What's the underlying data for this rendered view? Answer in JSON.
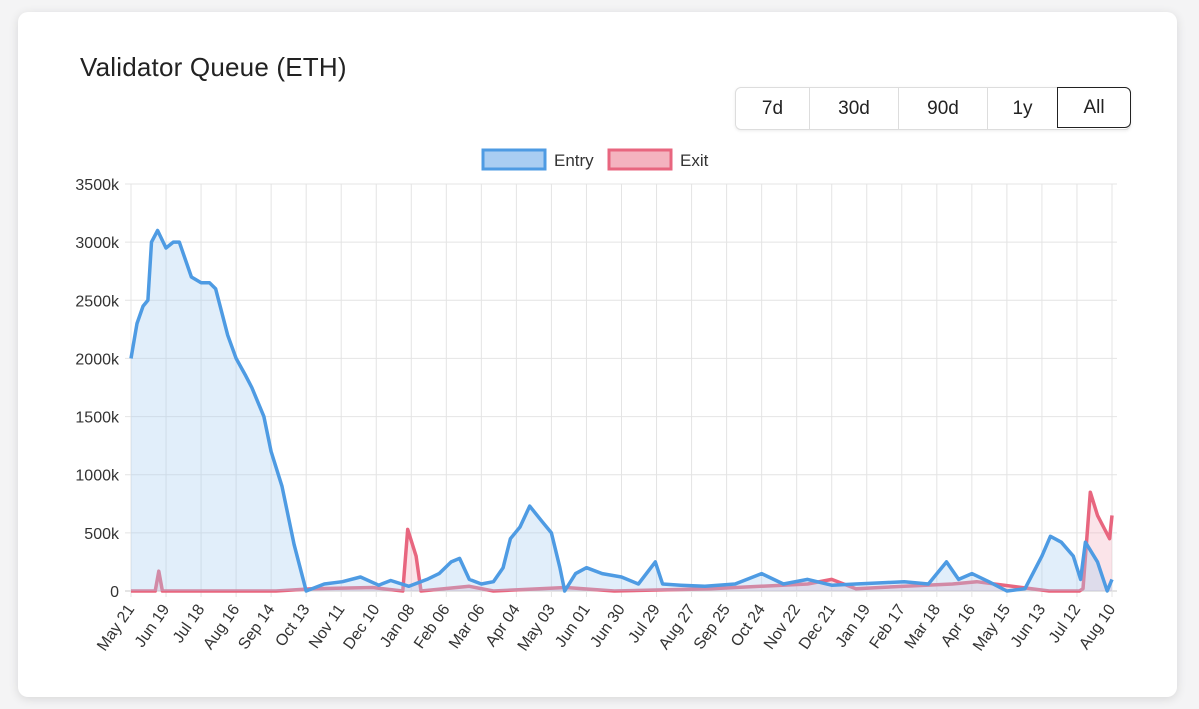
{
  "title": "Validator Queue (ETH)",
  "range_buttons": [
    {
      "label": "7d",
      "active": false
    },
    {
      "label": "30d",
      "active": false
    },
    {
      "label": "90d",
      "active": false
    },
    {
      "label": "1y",
      "active": false
    },
    {
      "label": "All",
      "active": true
    }
  ],
  "chart_data": {
    "type": "line",
    "title": "",
    "xlabel": "",
    "ylabel": "",
    "legend_position": "top",
    "grid": true,
    "ylim": [
      0,
      3500
    ],
    "y_ticks": [
      "0",
      "500k",
      "1000k",
      "1500k",
      "2000k",
      "2500k",
      "3000k",
      "3500k"
    ],
    "y_tick_values": [
      0,
      500,
      1000,
      1500,
      2000,
      2500,
      3000,
      3500
    ],
    "y_unit": "k ETH",
    "x_ticks": [
      "May 21",
      "Jun 19",
      "Jul 18",
      "Aug 16",
      "Sep 14",
      "Oct 13",
      "Nov 11",
      "Dec 10",
      "Jan 08",
      "Feb 06",
      "Mar 06",
      "Apr 04",
      "May 03",
      "Jun 01",
      "Jun 30",
      "Jul 29",
      "Aug 27",
      "Sep 25",
      "Oct 24",
      "Nov 22",
      "Dec 21",
      "Jan 19",
      "Feb 17",
      "Mar 18",
      "Apr 16",
      "May 15",
      "Jun 13",
      "Jul 12",
      "Aug 10"
    ],
    "x_tick_interval_days": 29,
    "series": [
      {
        "name": "Entry",
        "color": "#4e9be3",
        "fill": "#a9cdf2",
        "days": [
          0,
          5,
          10,
          14,
          17,
          22,
          29,
          35,
          40,
          50,
          58,
          65,
          70,
          80,
          87,
          95,
          100,
          110,
          116,
          125,
          135,
          145,
          160,
          175,
          190,
          205,
          215,
          230,
          245,
          255,
          265,
          272,
          280,
          290,
          300,
          308,
          314,
          322,
          330,
          340,
          348,
          355,
          359,
          368,
          377,
          390,
          406,
          420,
          434,
          440,
          455,
          475,
          500,
          522,
          540,
          560,
          580,
          600,
          620,
          640,
          660,
          675,
          685,
          696,
          710,
          725,
          740,
          754,
          761,
          770,
          780,
          786,
          790,
          800,
          808,
          812
        ],
        "values": [
          2000,
          2300,
          2450,
          2500,
          3000,
          3100,
          2950,
          3000,
          3000,
          2700,
          2650,
          2650,
          2600,
          2200,
          2000,
          1850,
          1750,
          1500,
          1200,
          900,
          400,
          0,
          60,
          80,
          120,
          50,
          90,
          40,
          100,
          150,
          250,
          280,
          100,
          60,
          80,
          200,
          450,
          550,
          730,
          600,
          500,
          200,
          0,
          150,
          200,
          150,
          120,
          60,
          250,
          60,
          50,
          40,
          60,
          150,
          60,
          100,
          50,
          60,
          70,
          80,
          60,
          250,
          100,
          150,
          80,
          0,
          20,
          300,
          470,
          420,
          300,
          100,
          420,
          250,
          0,
          100
        ]
      },
      {
        "name": "Exit",
        "color": "#e8667f",
        "fill": "#f4b3bf",
        "days": [
          0,
          20,
          23,
          26,
          60,
          120,
          150,
          200,
          225,
          229,
          236,
          240,
          280,
          300,
          360,
          400,
          480,
          560,
          580,
          600,
          640,
          680,
          700,
          760,
          785,
          788,
          794,
          800,
          805,
          810,
          812
        ],
        "values": [
          0,
          0,
          170,
          0,
          0,
          0,
          20,
          30,
          0,
          530,
          300,
          0,
          40,
          0,
          30,
          0,
          20,
          60,
          100,
          20,
          40,
          60,
          80,
          0,
          0,
          20,
          850,
          650,
          550,
          450,
          650
        ]
      }
    ]
  }
}
